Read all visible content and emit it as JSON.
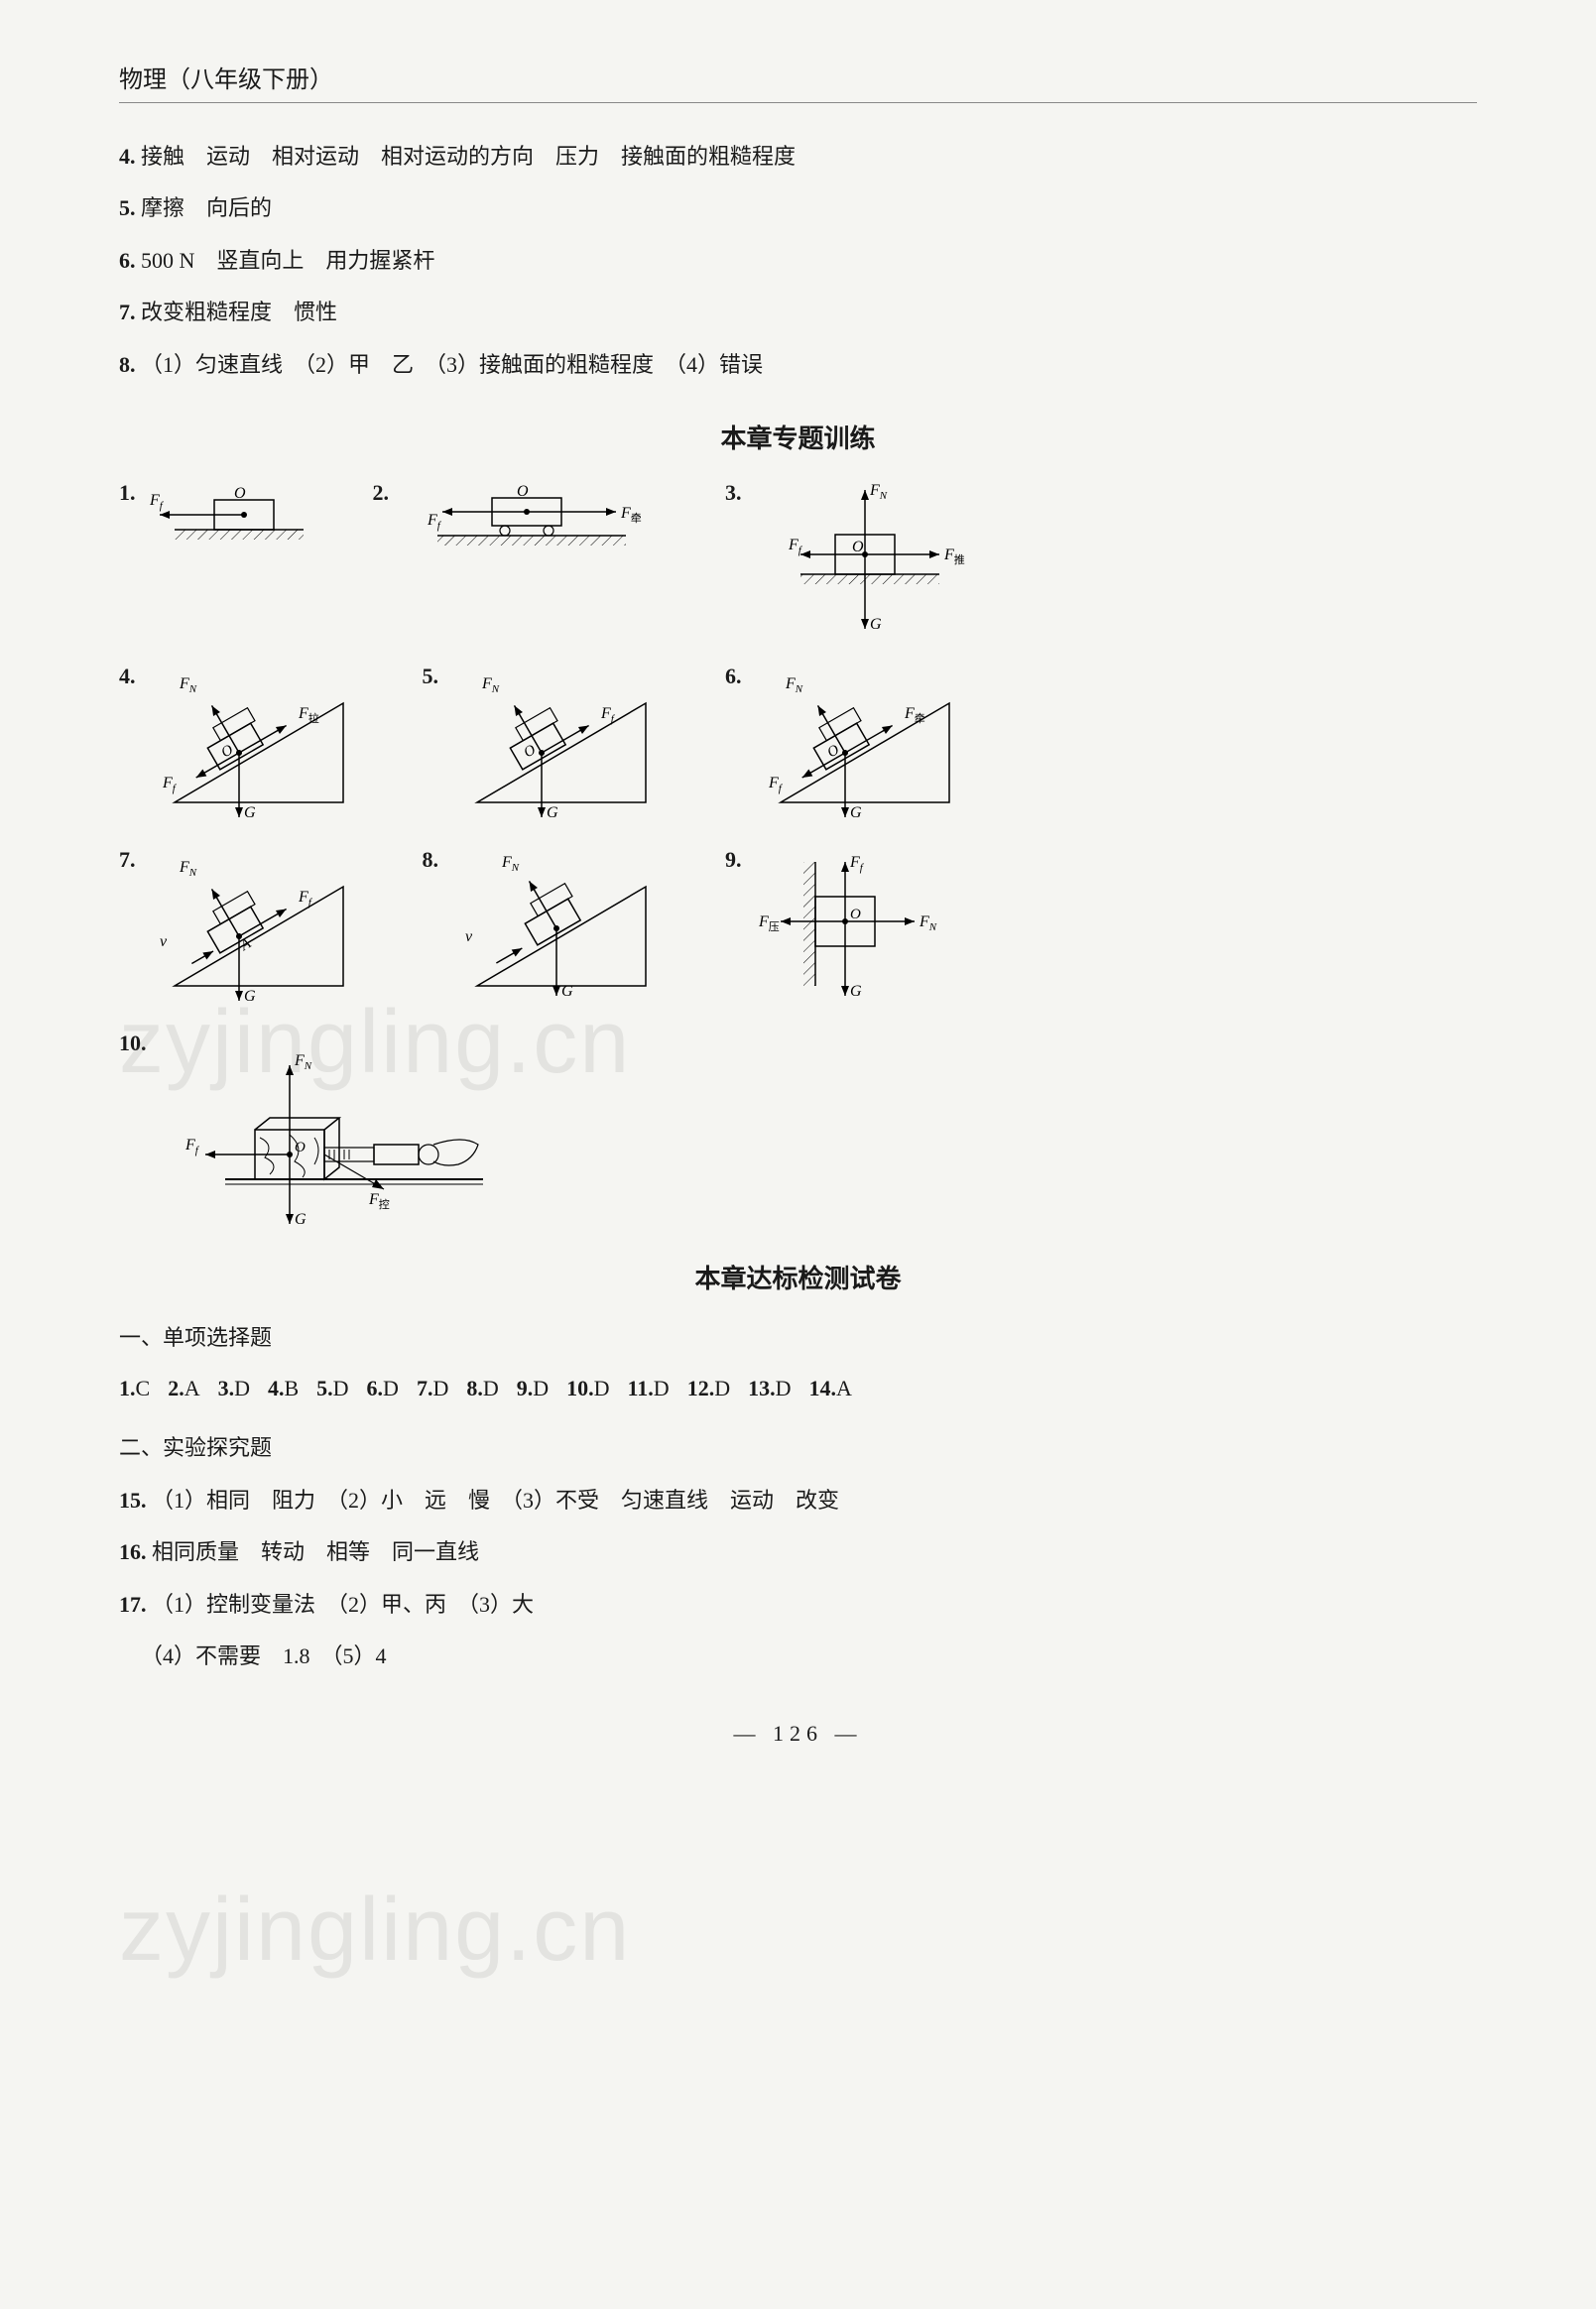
{
  "header": "物理（八年级下册）",
  "answers_top": [
    {
      "n": "4.",
      "text": "接触　运动　相对运动　相对运动的方向　压力　接触面的粗糙程度"
    },
    {
      "n": "5.",
      "text": "摩擦　向后的"
    },
    {
      "n": "6.",
      "text": "500 N　竖直向上　用力握紧杆"
    },
    {
      "n": "7.",
      "text": "改变粗糙程度　惯性"
    },
    {
      "n": "8.",
      "text": "（1）匀速直线　（2）甲　乙　（3）接触面的粗糙程度　（4）错误"
    }
  ],
  "section1_title": "本章专题训练",
  "section2_title": "本章达标检测试卷",
  "sub1": "一、单项选择题",
  "sub2": "二、实验探究题",
  "mc": [
    {
      "n": "1.",
      "a": "C"
    },
    {
      "n": "2.",
      "a": "A"
    },
    {
      "n": "3.",
      "a": "D"
    },
    {
      "n": "4.",
      "a": "B"
    },
    {
      "n": "5.",
      "a": "D"
    },
    {
      "n": "6.",
      "a": "D"
    },
    {
      "n": "7.",
      "a": "D"
    },
    {
      "n": "8.",
      "a": "D"
    },
    {
      "n": "9.",
      "a": "D"
    },
    {
      "n": "10.",
      "a": "D"
    },
    {
      "n": "11.",
      "a": "D"
    },
    {
      "n": "12.",
      "a": "D"
    },
    {
      "n": "13.",
      "a": "D"
    },
    {
      "n": "14.",
      "a": "A"
    }
  ],
  "answers_bottom": [
    {
      "n": "15.",
      "text": "（1）相同　阻力　（2）小　远　慢　（3）不受　匀速直线　运动　改变"
    },
    {
      "n": "16.",
      "text": "相同质量　转动　相等　同一直线"
    },
    {
      "n": "17.",
      "text": "（1）控制变量法　（2）甲、丙　（3）大"
    },
    {
      "n": "",
      "text": "（4）不需要　1.8　（5）4"
    }
  ],
  "watermark": "zyjingling.cn",
  "page_num": "— 126 —",
  "diagram_style": {
    "stroke": "#000000",
    "stroke_width": 1.5,
    "fill": "none",
    "font_size": 16,
    "font_style": "italic",
    "hatch_spacing": 8
  },
  "diagram_labels": {
    "Ff": "F",
    "Ff_sub": "f",
    "FN": "F",
    "FN_sub": "N",
    "Fq": "F",
    "Fq_sub": "牵",
    "Fla": "F",
    "Fla_sub": "拉",
    "Ftui": "F",
    "Ftui_sub": "推",
    "Fya": "F",
    "Fya_sub": "压",
    "Fkong": "F",
    "Fkong_sub": "控",
    "G": "G",
    "O": "O",
    "v": "v"
  }
}
